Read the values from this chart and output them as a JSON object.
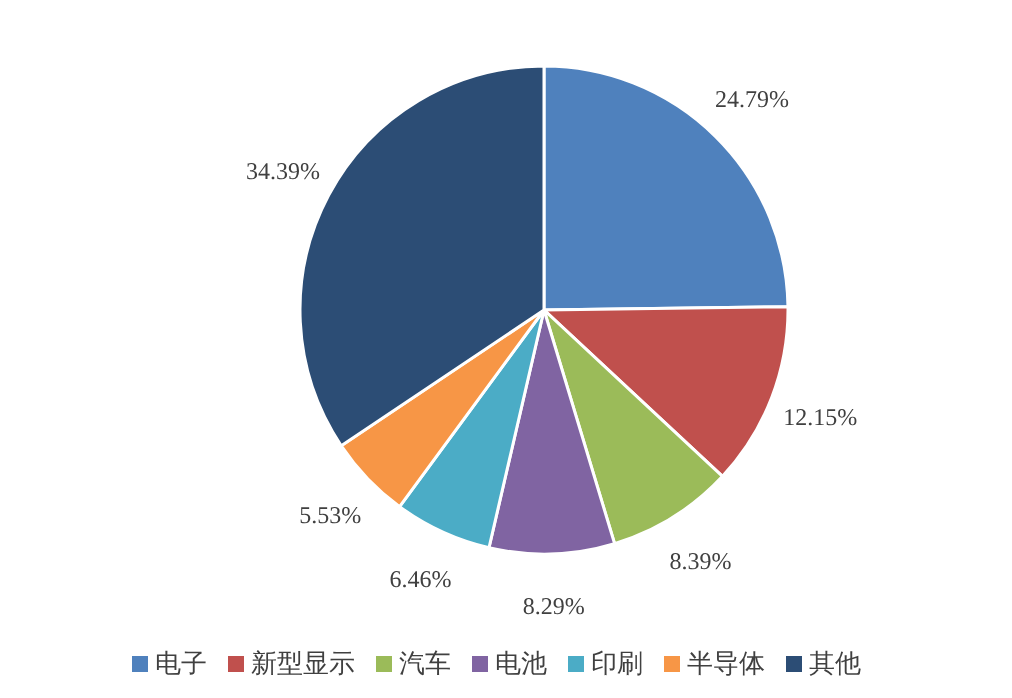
{
  "chart_data": {
    "type": "pie",
    "categories": [
      "电子",
      "新型显示",
      "汽车",
      "电池",
      "印刷",
      "半导体",
      "其他"
    ],
    "values": [
      24.79,
      12.15,
      8.39,
      8.29,
      6.46,
      5.53,
      34.39
    ],
    "colors": [
      "#4f81bd",
      "#c0504d",
      "#9bbb59",
      "#8064a2",
      "#4bacc6",
      "#f79646",
      "#2c4d75"
    ],
    "value_labels": [
      "24.79%",
      "12.15%",
      "8.39%",
      "8.29%",
      "6.46%",
      "5.53%",
      "34.39%"
    ],
    "legend": "bottom"
  }
}
